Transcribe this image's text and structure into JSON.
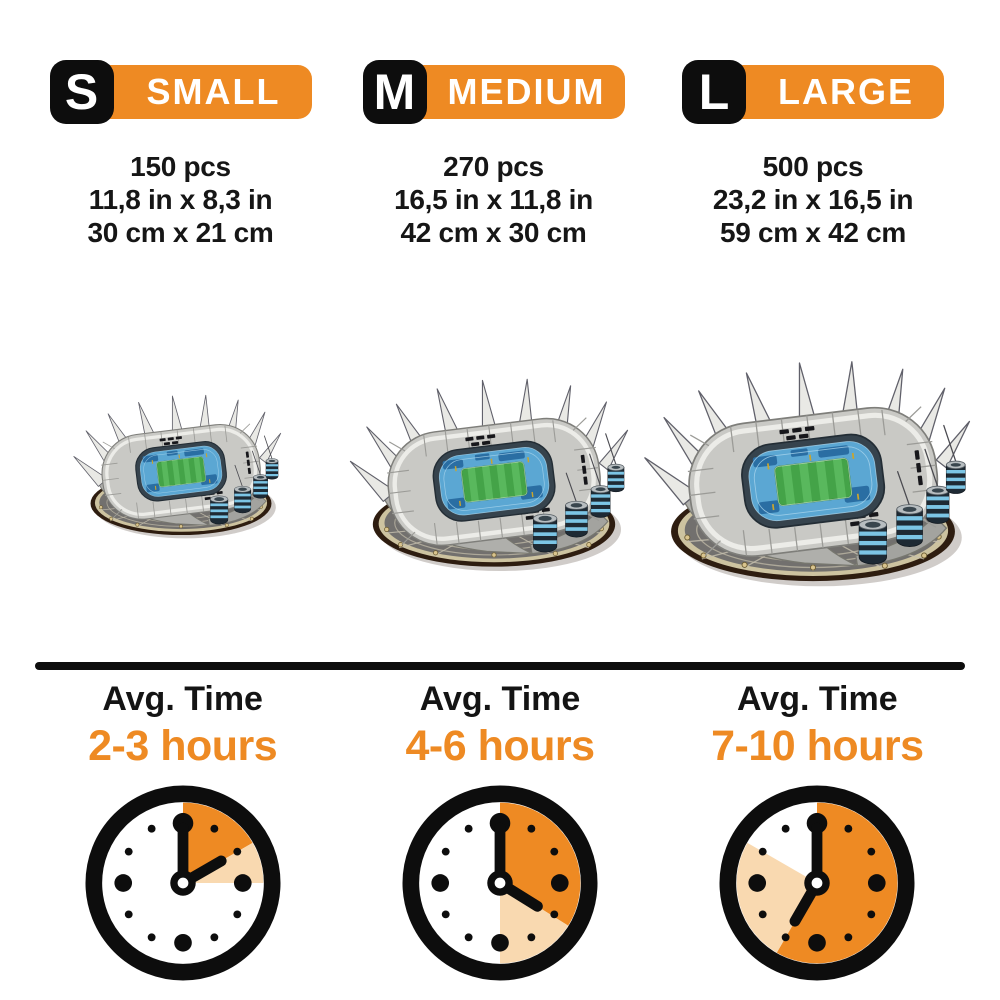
{
  "colors": {
    "orange": "#EE8A23",
    "light_orange": "#F9D9B0",
    "black": "#0D0D0D",
    "background": "#FFFFFF"
  },
  "stadium": {
    "description": "3D puzzle model of a football stadium (grey spiked roof, blue seating bowl, green pitch, striped towers) on an oval base"
  },
  "sizes": [
    {
      "letter": "S",
      "label": "SMALL",
      "pieces": "150 pcs",
      "dimensions_in": "11,8 in x 8,3 in",
      "dimensions_cm": "30 cm x 21 cm",
      "avg_time_label": "Avg. Time",
      "avg_time": "2-3 hours",
      "clock": {
        "solid_wedge_end_deg": 60,
        "pale_wedge_end_deg": 90,
        "hour_hand_deg": 60,
        "minute_hand_deg": 0
      }
    },
    {
      "letter": "M",
      "label": "MEDIUM",
      "pieces": "270 pcs",
      "dimensions_in": "16,5 in x 11,8 in",
      "dimensions_cm": "42 cm x 30 cm",
      "avg_time_label": "Avg. Time",
      "avg_time": "4-6 hours",
      "clock": {
        "solid_wedge_end_deg": 122,
        "pale_wedge_end_deg": 180,
        "hour_hand_deg": 122,
        "minute_hand_deg": 0
      }
    },
    {
      "letter": "L",
      "label": "LARGE",
      "pieces": "500 pcs",
      "dimensions_in": "23,2 in x 16,5 in",
      "dimensions_cm": "59 cm x 42 cm",
      "avg_time_label": "Avg. Time",
      "avg_time": "7-10 hours",
      "clock": {
        "solid_wedge_end_deg": 210,
        "pale_wedge_end_deg": 300,
        "hour_hand_deg": 210,
        "minute_hand_deg": 0
      }
    }
  ]
}
